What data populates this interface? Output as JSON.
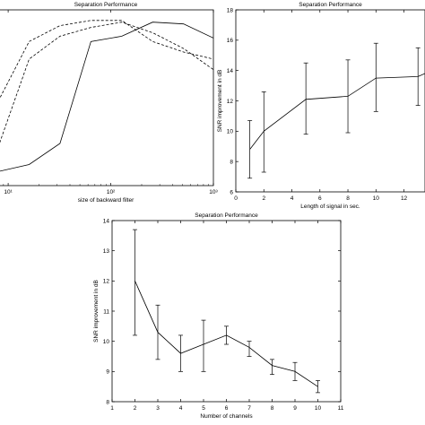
{
  "chart_data": [
    {
      "type": "line",
      "title": "Separation Performance",
      "xlabel": "size of backward filter",
      "ylabel": "",
      "xscale": "log",
      "xlim": [
        8,
        1000
      ],
      "ylim": [
        0,
        1
      ],
      "grid": false,
      "legend": "none",
      "x_ticks": [
        10,
        100,
        1000
      ],
      "x_tick_labels": [
        "10¹",
        "10²",
        "10³"
      ],
      "series": [
        {
          "style": "solid",
          "x": [
            8,
            16,
            32,
            64,
            128,
            256,
            512,
            1000
          ],
          "y": [
            0.08,
            0.12,
            0.24,
            0.82,
            0.85,
            0.93,
            0.92,
            0.84
          ]
        },
        {
          "style": "dashed",
          "x": [
            8,
            16,
            32,
            64,
            128,
            256,
            512,
            1000
          ],
          "y": [
            0.22,
            0.72,
            0.85,
            0.9,
            0.93,
            0.87,
            0.78,
            0.66
          ]
        },
        {
          "style": "dashed",
          "x": [
            8,
            16,
            32,
            64,
            128,
            256,
            512,
            1000
          ],
          "y": [
            0.48,
            0.82,
            0.91,
            0.94,
            0.94,
            0.82,
            0.76,
            0.72
          ]
        }
      ]
    },
    {
      "type": "line",
      "title": "Separation Performance",
      "xlabel": "Length of signal in sec.",
      "ylabel": "SNR improvement in dB",
      "xlim": [
        0,
        13.5
      ],
      "ylim": [
        6,
        18
      ],
      "x_ticks": [
        0,
        2,
        4,
        6,
        8,
        10,
        12
      ],
      "y_ticks": [
        6,
        8,
        10,
        12,
        14,
        16,
        18
      ],
      "grid": false,
      "legend": "none",
      "series": [
        {
          "x": [
            1,
            2,
            5,
            8,
            10,
            13,
            13.5
          ],
          "y": [
            8.8,
            10.0,
            12.1,
            12.3,
            13.5,
            13.6,
            13.8
          ],
          "error_low": [
            6.9,
            7.3,
            9.8,
            9.9,
            11.3,
            11.7,
            null
          ],
          "error_high": [
            10.7,
            12.6,
            14.5,
            14.7,
            15.8,
            15.5,
            null
          ]
        }
      ]
    },
    {
      "type": "line",
      "title": "Separation Performance",
      "xlabel": "Number of channels",
      "ylabel": "SNR improvement in dB",
      "xlim": [
        1,
        11
      ],
      "ylim": [
        8,
        14
      ],
      "x_ticks": [
        1,
        2,
        3,
        4,
        5,
        6,
        7,
        8,
        9,
        10,
        11
      ],
      "y_ticks": [
        8,
        9,
        10,
        11,
        12,
        13,
        14
      ],
      "grid": false,
      "legend": "none",
      "series": [
        {
          "x": [
            2,
            3,
            4,
            5,
            6,
            7,
            8,
            9,
            10
          ],
          "y": [
            12.0,
            10.3,
            9.6,
            9.9,
            10.2,
            9.8,
            9.2,
            9.0,
            8.5
          ],
          "error_low": [
            10.2,
            9.4,
            9.0,
            9.0,
            9.9,
            9.5,
            8.9,
            8.7,
            8.3
          ],
          "error_high": [
            13.7,
            11.2,
            10.2,
            10.7,
            10.5,
            10.0,
            9.4,
            9.3,
            8.7
          ]
        }
      ]
    }
  ]
}
